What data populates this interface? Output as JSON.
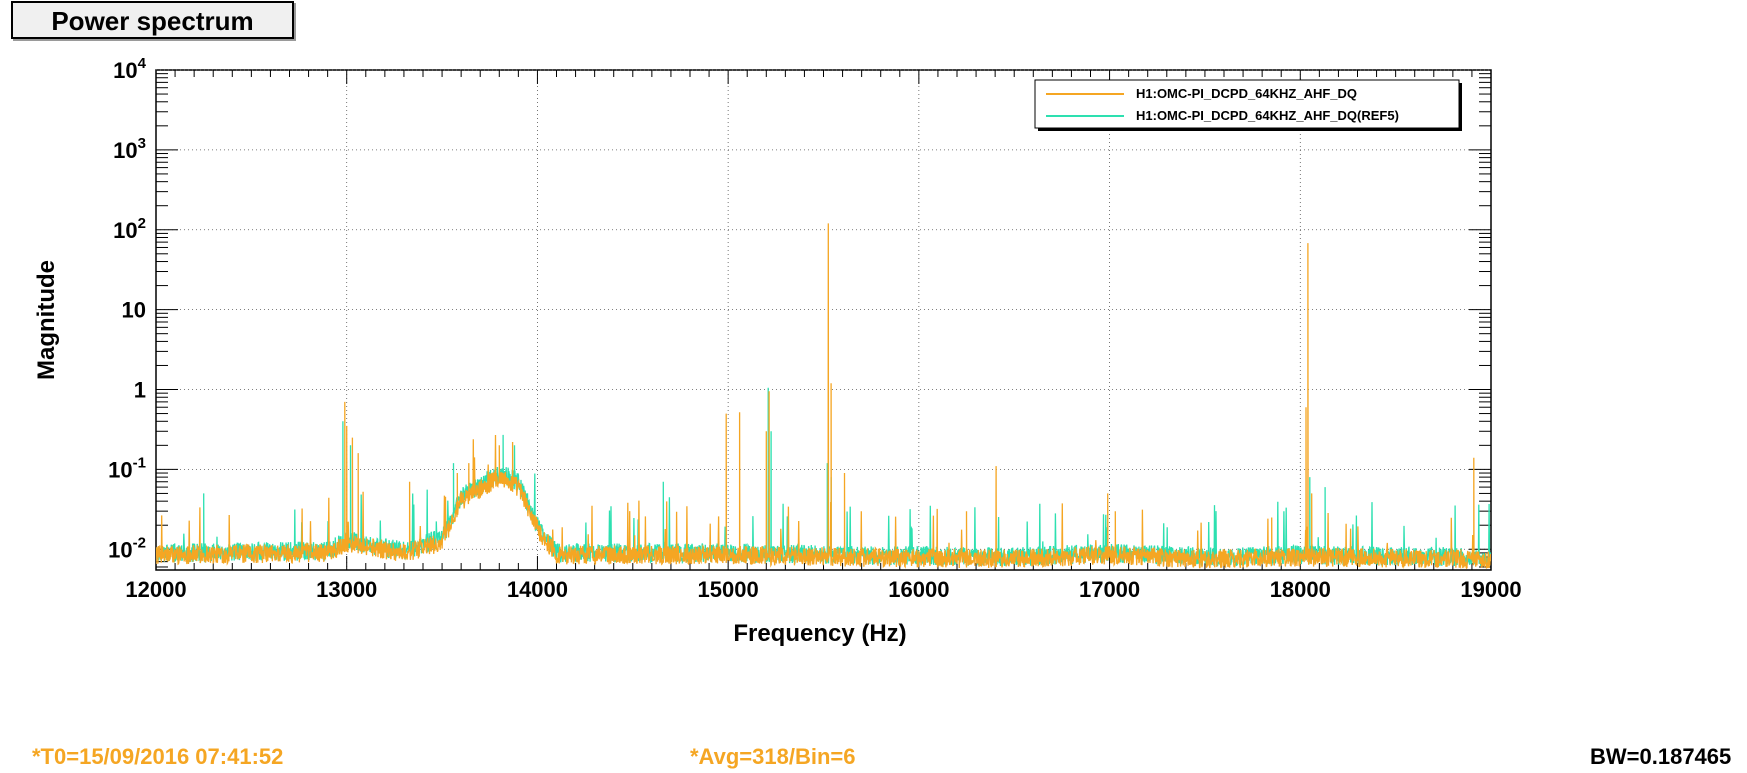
{
  "title": "Power spectrum",
  "footer": {
    "t0": "*T0=15/09/2016 07:41:52",
    "avg": "*Avg=318/Bin=6",
    "bw": "BW=0.187465"
  },
  "colors": {
    "orange": "#f5a623",
    "teal": "#2de0b0",
    "footer_orange": "#f5a623"
  },
  "chart_data": {
    "type": "line",
    "title": "Power spectrum",
    "xlabel": "Frequency (Hz)",
    "ylabel": "Magnitude",
    "xlim": [
      12000,
      19000
    ],
    "ylim": [
      0.0055,
      10000
    ],
    "yscale": "log",
    "grid": true,
    "legend_position": "top-right",
    "x_ticks": [
      12000,
      13000,
      14000,
      15000,
      16000,
      17000,
      18000,
      19000
    ],
    "x_tick_labels": [
      "12000",
      "13000",
      "14000",
      "15000",
      "16000",
      "17000",
      "18000",
      "19000"
    ],
    "y_ticks": [
      0.01,
      0.1,
      1,
      10,
      100,
      1000,
      10000
    ],
    "y_tick_labels": [
      {
        "base": "10",
        "exp": "-2"
      },
      {
        "base": "10",
        "exp": "-1"
      },
      {
        "base": "1",
        "exp": ""
      },
      {
        "base": "10",
        "exp": ""
      },
      {
        "base": "10",
        "exp": "2"
      },
      {
        "base": "10",
        "exp": "3"
      },
      {
        "base": "10",
        "exp": "4"
      }
    ],
    "series": [
      {
        "name": "H1:OMC-PI_DCPD_64KHZ_AHF_DQ",
        "color": "#f5a623",
        "baseline": [
          [
            12000,
            0.0085
          ],
          [
            12900,
            0.009
          ],
          [
            13000,
            0.012
          ],
          [
            13300,
            0.009
          ],
          [
            13500,
            0.012
          ],
          [
            13600,
            0.04
          ],
          [
            13800,
            0.08
          ],
          [
            13900,
            0.06
          ],
          [
            14000,
            0.018
          ],
          [
            14100,
            0.0085
          ],
          [
            15000,
            0.0085
          ],
          [
            15600,
            0.008
          ],
          [
            16500,
            0.0075
          ],
          [
            17000,
            0.0085
          ],
          [
            17500,
            0.0075
          ],
          [
            18000,
            0.008
          ],
          [
            19000,
            0.0075
          ]
        ],
        "peaks": [
          [
            12990,
            0.7
          ],
          [
            13000,
            0.35
          ],
          [
            13030,
            0.25
          ],
          [
            13060,
            0.16
          ],
          [
            13330,
            0.07
          ],
          [
            13580,
            0.09
          ],
          [
            13640,
            0.12
          ],
          [
            13800,
            0.2
          ],
          [
            13870,
            0.22
          ],
          [
            14990,
            0.5
          ],
          [
            15060,
            0.52
          ],
          [
            15200,
            0.3
          ],
          [
            15215,
            0.95
          ],
          [
            15525,
            120
          ],
          [
            15540,
            1.2
          ],
          [
            15610,
            0.09
          ],
          [
            16250,
            0.03
          ],
          [
            16405,
            0.11
          ],
          [
            16990,
            0.05
          ],
          [
            17030,
            0.03
          ],
          [
            17850,
            0.025
          ],
          [
            18030,
            0.6
          ],
          [
            18040,
            68
          ],
          [
            18060,
            0.05
          ],
          [
            18910,
            0.14
          ]
        ]
      },
      {
        "name": "H1:OMC-PI_DCPD_64KHZ_AHF_DQ(REF5)",
        "color": "#2de0b0",
        "baseline": [
          [
            12000,
            0.009
          ],
          [
            12900,
            0.0095
          ],
          [
            13000,
            0.013
          ],
          [
            13300,
            0.0095
          ],
          [
            13500,
            0.014
          ],
          [
            13600,
            0.045
          ],
          [
            13800,
            0.09
          ],
          [
            13900,
            0.07
          ],
          [
            14000,
            0.02
          ],
          [
            14100,
            0.009
          ],
          [
            15000,
            0.009
          ],
          [
            15600,
            0.0085
          ],
          [
            16500,
            0.008
          ],
          [
            17000,
            0.009
          ],
          [
            17500,
            0.008
          ],
          [
            18000,
            0.0085
          ],
          [
            19000,
            0.008
          ]
        ],
        "peaks": [
          [
            12250,
            0.05
          ],
          [
            12980,
            0.4
          ],
          [
            13020,
            0.2
          ],
          [
            13560,
            0.12
          ],
          [
            13820,
            0.27
          ],
          [
            13880,
            0.2
          ],
          [
            14660,
            0.07
          ],
          [
            15210,
            1.05
          ],
          [
            15225,
            0.3
          ],
          [
            15520,
            0.12
          ],
          [
            15540,
            0.08
          ],
          [
            18050,
            0.08
          ],
          [
            18130,
            0.06
          ]
        ]
      }
    ]
  }
}
